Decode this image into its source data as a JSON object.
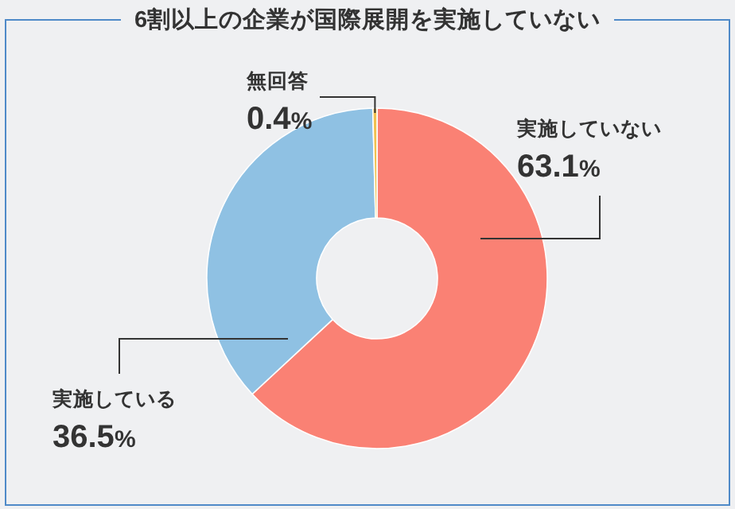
{
  "chart_data": {
    "type": "donut",
    "title": "6割以上の企業が国際展開を実施していない",
    "categories": [
      "実施していない",
      "実施している",
      "無回答"
    ],
    "values": [
      63.1,
      36.5,
      0.4
    ],
    "colors": [
      "#fa8174",
      "#8fc1e3",
      "#f0c050"
    ],
    "value_labels": [
      "63.1%",
      "36.5%",
      "0.4%"
    ]
  }
}
